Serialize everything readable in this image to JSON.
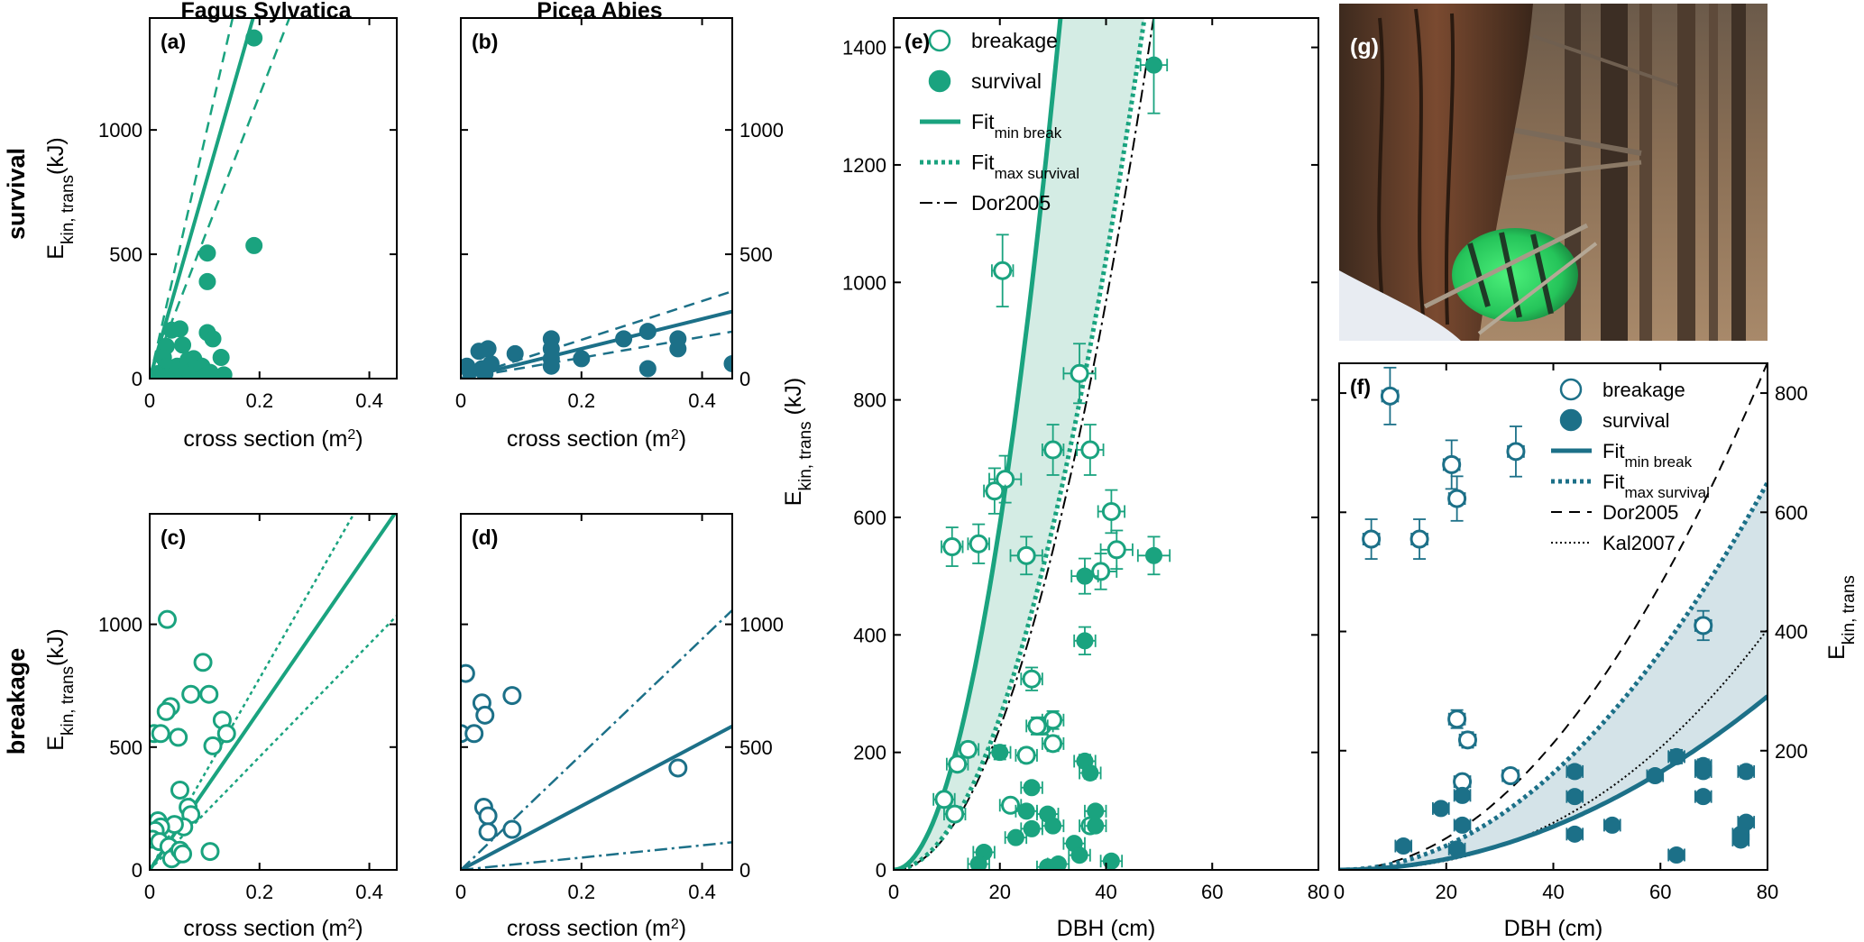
{
  "colors": {
    "green": "#1aa37f",
    "blue": "#1c7088",
    "green_fill": "#d4ece4",
    "blue_fill": "#d4e3e8"
  },
  "headers": {
    "col1": "Fagus Sylvatica",
    "col2": "Picea Abies",
    "row1": "survival",
    "row2": "breakage"
  },
  "photo": {
    "label": "(g)"
  },
  "chart_data": [
    {
      "id": "a",
      "type": "scatter",
      "label": "(a)",
      "xlabel": "cross section (m²)",
      "ylabel": "E_kin, trans(kJ)",
      "xlim": [
        0,
        0.45
      ],
      "ylim": [
        0,
        1450
      ],
      "xticks": [
        0,
        0.2,
        0.4
      ],
      "xtick_labels": [
        "0",
        "0.2",
        "0.4"
      ],
      "yticks": [
        0,
        500,
        1000
      ],
      "ytick_labels": [
        "0",
        "500",
        "1000"
      ],
      "marker": "filled",
      "color": "green",
      "points": [
        [
          0.19,
          1370
        ],
        [
          0.19,
          535
        ],
        [
          0.105,
          505
        ],
        [
          0.105,
          390
        ],
        [
          0.105,
          185
        ],
        [
          0.115,
          160
        ],
        [
          0.13,
          85
        ],
        [
          0.135,
          15
        ],
        [
          0.04,
          195
        ],
        [
          0.055,
          200
        ],
        [
          0.03,
          130
        ],
        [
          0.06,
          135
        ],
        [
          0.025,
          85
        ],
        [
          0.03,
          50
        ],
        [
          0.015,
          20
        ],
        [
          0.02,
          10
        ],
        [
          0.045,
          15
        ],
        [
          0.05,
          50
        ],
        [
          0.06,
          10
        ],
        [
          0.065,
          40
        ],
        [
          0.07,
          75
        ],
        [
          0.075,
          30
        ],
        [
          0.08,
          80
        ],
        [
          0.085,
          60
        ],
        [
          0.09,
          20
        ],
        [
          0.095,
          50
        ],
        [
          0.1,
          10
        ],
        [
          0.11,
          25
        ]
      ],
      "fit_lines": [
        {
          "slope": 7700,
          "style": "solid"
        },
        {
          "slope": 9600,
          "style": "dashed"
        },
        {
          "slope": 5700,
          "style": "dashed"
        }
      ]
    },
    {
      "id": "b",
      "type": "scatter",
      "label": "(b)",
      "xlabel": "cross section (m²)",
      "ylabel": "",
      "xlim": [
        0,
        0.45
      ],
      "ylim": [
        0,
        1450
      ],
      "xticks": [
        0,
        0.2,
        0.4
      ],
      "xtick_labels": [
        "0",
        "0.2",
        "0.4"
      ],
      "yticks": [
        0,
        500,
        1000
      ],
      "ytick_labels": [
        "0",
        "500",
        "1000"
      ],
      "marker": "filled",
      "color": "blue",
      "points": [
        [
          0.01,
          50
        ],
        [
          0.015,
          30
        ],
        [
          0.03,
          110
        ],
        [
          0.045,
          120
        ],
        [
          0.035,
          40
        ],
        [
          0.05,
          60
        ],
        [
          0.04,
          20
        ],
        [
          0.09,
          100
        ],
        [
          0.15,
          160
        ],
        [
          0.15,
          120
        ],
        [
          0.15,
          80
        ],
        [
          0.15,
          50
        ],
        [
          0.2,
          80
        ],
        [
          0.27,
          160
        ],
        [
          0.31,
          190
        ],
        [
          0.31,
          40
        ],
        [
          0.36,
          160
        ],
        [
          0.36,
          120
        ],
        [
          0.45,
          60
        ]
      ],
      "fit_lines": [
        {
          "slope": 600,
          "style": "solid"
        },
        {
          "slope": 780,
          "style": "dashed"
        },
        {
          "slope": 420,
          "style": "dashed"
        }
      ]
    },
    {
      "id": "c",
      "type": "scatter",
      "label": "(c)",
      "xlabel": "cross section (m²)",
      "ylabel": "E_kin, trans(kJ)",
      "xlim": [
        0,
        0.45
      ],
      "ylim": [
        0,
        1450
      ],
      "xticks": [
        0,
        0.2,
        0.4
      ],
      "xtick_labels": [
        "0",
        "0.2",
        "0.4"
      ],
      "yticks": [
        0,
        500,
        1000
      ],
      "ytick_labels": [
        "0",
        "500",
        "1000"
      ],
      "marker": "open",
      "color": "green",
      "points": [
        [
          0.032,
          1020
        ],
        [
          0.097,
          845
        ],
        [
          0.075,
          715
        ],
        [
          0.108,
          715
        ],
        [
          0.038,
          665
        ],
        [
          0.03,
          645
        ],
        [
          0.008,
          555
        ],
        [
          0.02,
          555
        ],
        [
          0.052,
          540
        ],
        [
          0.115,
          505
        ],
        [
          0.132,
          610
        ],
        [
          0.14,
          555
        ],
        [
          0.055,
          325
        ],
        [
          0.07,
          255
        ],
        [
          0.075,
          225
        ],
        [
          0.062,
          175
        ],
        [
          0.045,
          185
        ],
        [
          0.015,
          200
        ],
        [
          0.02,
          175
        ],
        [
          0.01,
          160
        ],
        [
          0.005,
          125
        ],
        [
          0.018,
          115
        ],
        [
          0.035,
          95
        ],
        [
          0.048,
          60
        ],
        [
          0.04,
          45
        ],
        [
          0.055,
          80
        ],
        [
          0.06,
          65
        ],
        [
          0.11,
          75
        ]
      ],
      "fit_lines": [
        {
          "slope": 3250,
          "style": "solid"
        },
        {
          "slope": 3900,
          "style": "dotted"
        },
        {
          "slope": 2300,
          "style": "dotted"
        }
      ]
    },
    {
      "id": "d",
      "type": "scatter",
      "label": "(d)",
      "xlabel": "cross section (m²)",
      "ylabel": "",
      "xlim": [
        0,
        0.45
      ],
      "ylim": [
        0,
        1450
      ],
      "xticks": [
        0,
        0.2,
        0.4
      ],
      "xtick_labels": [
        "0",
        "0.2",
        "0.4"
      ],
      "yticks": [
        0,
        500,
        1000
      ],
      "ytick_labels": [
        "0",
        "500",
        "1000"
      ],
      "marker": "open",
      "color": "blue",
      "points": [
        [
          0.008,
          800
        ],
        [
          0.035,
          680
        ],
        [
          0.04,
          630
        ],
        [
          0.085,
          710
        ],
        [
          0.0,
          555
        ],
        [
          0.022,
          555
        ],
        [
          0.038,
          255
        ],
        [
          0.045,
          220
        ],
        [
          0.045,
          155
        ],
        [
          0.085,
          165
        ],
        [
          0.36,
          415
        ]
      ],
      "fit_lines": [
        {
          "slope": 1300,
          "style": "solid"
        },
        {
          "slope": 2350,
          "style": "dashdot"
        },
        {
          "slope": 250,
          "style": "dashdot"
        }
      ]
    },
    {
      "id": "e",
      "type": "scatter",
      "label": "(e)",
      "xlabel": "DBH (cm)",
      "ylabel": "E_kin, trans (kJ)",
      "xlim": [
        0,
        80
      ],
      "ylim": [
        0,
        1450
      ],
      "xticks": [
        0,
        20,
        40,
        60,
        80
      ],
      "xtick_labels": [
        "0",
        "20",
        "40",
        "60",
        "80"
      ],
      "yticks": [
        0,
        200,
        400,
        600,
        800,
        1000,
        1200,
        1400
      ],
      "ytick_labels": [
        "0",
        "200",
        "400",
        "600",
        "800",
        "1000",
        "1200",
        "1400"
      ],
      "color": "green",
      "legend": [
        {
          "label": "breakage",
          "style": "open"
        },
        {
          "label": "survival",
          "style": "filled"
        },
        {
          "label": "Fit",
          "sub": "min break",
          "style": "solid"
        },
        {
          "label": "Fit",
          "sub": "max survival",
          "style": "dotted"
        },
        {
          "label": "Dor2005",
          "style": "dashdot"
        }
      ],
      "curves": {
        "min_break_coef": 1.47,
        "max_survival_coef": 0.65,
        "dor2005_coef": 0.605,
        "exponent": 2
      },
      "breakage": [
        [
          20.5,
          1020,
          2
        ],
        [
          35,
          845,
          3
        ],
        [
          30,
          715,
          2
        ],
        [
          37,
          715,
          2.5
        ],
        [
          21,
          665,
          3
        ],
        [
          19,
          645,
          2
        ],
        [
          11,
          550,
          2
        ],
        [
          16,
          555,
          2
        ],
        [
          25,
          535,
          3
        ],
        [
          41,
          610,
          2.5
        ],
        [
          39,
          508,
          3
        ],
        [
          42,
          545,
          3
        ],
        [
          26,
          325,
          2
        ],
        [
          28,
          245,
          2
        ],
        [
          30,
          255,
          2
        ],
        [
          27,
          245,
          2
        ],
        [
          30,
          215,
          2
        ],
        [
          12,
          180,
          2
        ],
        [
          14,
          205,
          2
        ],
        [
          9.5,
          120,
          2
        ],
        [
          11.5,
          95,
          2
        ],
        [
          22,
          110,
          2
        ],
        [
          25,
          195,
          2
        ],
        [
          37,
          75,
          2
        ]
      ],
      "survival": [
        [
          49,
          1370,
          2.5
        ],
        [
          49,
          535,
          3
        ],
        [
          36,
          500,
          2.5
        ],
        [
          36,
          390,
          2
        ],
        [
          36,
          185,
          2
        ],
        [
          37,
          165,
          2
        ],
        [
          20,
          200,
          2
        ],
        [
          26,
          140,
          2
        ],
        [
          25,
          100,
          2
        ],
        [
          29,
          95,
          2
        ],
        [
          26,
          70,
          2
        ],
        [
          23,
          55,
          2
        ],
        [
          17,
          30,
          2
        ],
        [
          16,
          10,
          2
        ],
        [
          30,
          75,
          2
        ],
        [
          34,
          45,
          2
        ],
        [
          35,
          25,
          2
        ],
        [
          38,
          100,
          2
        ],
        [
          41,
          15,
          2
        ],
        [
          29,
          5,
          2
        ],
        [
          38,
          75,
          2
        ],
        [
          31,
          10,
          2
        ]
      ]
    },
    {
      "id": "f",
      "type": "scatter",
      "label": "(f)",
      "xlabel": "DBH (cm)",
      "ylabel": "E_kin, trans",
      "xlim": [
        0,
        80
      ],
      "ylim": [
        0,
        850
      ],
      "xticks": [
        0,
        20,
        40,
        60,
        80
      ],
      "xtick_labels": [
        "0",
        "20",
        "40",
        "60",
        "80"
      ],
      "yticks": [
        200,
        400,
        600,
        800
      ],
      "ytick_labels": [
        "200",
        "400",
        "600",
        "800"
      ],
      "color": "blue",
      "legend": [
        {
          "label": "breakage",
          "style": "open"
        },
        {
          "label": "survival",
          "style": "filled"
        },
        {
          "label": "Fit",
          "sub": "min break",
          "style": "solid"
        },
        {
          "label": "Fit",
          "sub": "max survival",
          "style": "dotted"
        },
        {
          "label": "Dor2005",
          "style": "dashed"
        },
        {
          "label": "Kal2007",
          "style": "fine-dotted"
        }
      ],
      "curves": {
        "min_break_coef": 0.0455,
        "max_survival_coef": 0.1015,
        "dor2005_coef": 0.133,
        "kal2007_coef": 0.0136,
        "kal2007_exponent": 2.35,
        "exponent": 2
      },
      "breakage": [
        [
          9.5,
          795,
          1.5
        ],
        [
          6,
          555,
          1.5
        ],
        [
          15,
          555,
          1.5
        ],
        [
          21,
          680,
          1.5
        ],
        [
          22,
          623,
          1.5
        ],
        [
          33,
          702,
          1.5
        ],
        [
          22,
          253,
          1.5
        ],
        [
          24,
          218,
          1.5
        ],
        [
          23,
          148,
          1.5
        ],
        [
          32,
          158,
          1.5
        ],
        [
          68,
          410,
          1.5
        ]
      ],
      "survival": [
        [
          12,
          40,
          1.5
        ],
        [
          19,
          103,
          1.5
        ],
        [
          23,
          125,
          1.5
        ],
        [
          23,
          75,
          1.5
        ],
        [
          22,
          35,
          1.5
        ],
        [
          44,
          165,
          1.5
        ],
        [
          44,
          123,
          1.5
        ],
        [
          44,
          60,
          1.5
        ],
        [
          51,
          75,
          1.5
        ],
        [
          59,
          158,
          1.5
        ],
        [
          63,
          190,
          1.5
        ],
        [
          63,
          25,
          1.5
        ],
        [
          68,
          175,
          1.5
        ],
        [
          68,
          165,
          1.5
        ],
        [
          68,
          123,
          1.5
        ],
        [
          76,
          165,
          1.5
        ],
        [
          76,
          80,
          1.5
        ],
        [
          75,
          60,
          1.5
        ],
        [
          75,
          50,
          1.5
        ]
      ]
    }
  ]
}
